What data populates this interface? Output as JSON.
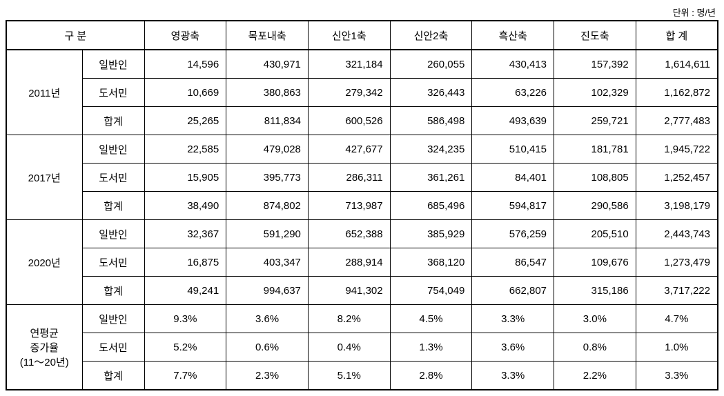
{
  "unit_label": "단위 : 명/년",
  "header": {
    "category": "구 분",
    "columns": [
      "영광축",
      "목포내축",
      "신안1축",
      "신안2축",
      "흑산축",
      "진도축",
      "합 계"
    ]
  },
  "groups": [
    {
      "label": "2011년",
      "rows": [
        {
          "label": "일반인",
          "cells": [
            "14,596",
            "430,971",
            "321,184",
            "260,055",
            "430,413",
            "157,392",
            "1,614,611"
          ]
        },
        {
          "label": "도서민",
          "cells": [
            "10,669",
            "380,863",
            "279,342",
            "326,443",
            "63,226",
            "102,329",
            "1,162,872"
          ]
        },
        {
          "label": "합계",
          "cells": [
            "25,265",
            "811,834",
            "600,526",
            "586,498",
            "493,639",
            "259,721",
            "2,777,483"
          ]
        }
      ]
    },
    {
      "label": "2017년",
      "rows": [
        {
          "label": "일반인",
          "cells": [
            "22,585",
            "479,028",
            "427,677",
            "324,235",
            "510,415",
            "181,781",
            "1,945,722"
          ]
        },
        {
          "label": "도서민",
          "cells": [
            "15,905",
            "395,773",
            "286,311",
            "361,261",
            "84,401",
            "108,805",
            "1,252,457"
          ]
        },
        {
          "label": "합계",
          "cells": [
            "38,490",
            "874,802",
            "713,987",
            "685,496",
            "594,817",
            "290,586",
            "3,198,179"
          ]
        }
      ]
    },
    {
      "label": "2020년",
      "rows": [
        {
          "label": "일반인",
          "cells": [
            "32,367",
            "591,290",
            "652,388",
            "385,929",
            "576,259",
            "205,510",
            "2,443,743"
          ]
        },
        {
          "label": "도서민",
          "cells": [
            "16,875",
            "403,347",
            "288,914",
            "368,120",
            "86,547",
            "109,676",
            "1,273,479"
          ]
        },
        {
          "label": "합계",
          "cells": [
            "49,241",
            "994,637",
            "941,302",
            "754,049",
            "662,807",
            "315,186",
            "3,717,222"
          ]
        }
      ]
    },
    {
      "label": "연평균\n증가율\n(11～20년)",
      "rows": [
        {
          "label": "일반인",
          "cells": [
            "9.3%",
            "3.6%",
            "8.2%",
            "4.5%",
            "3.3%",
            "3.0%",
            "4.7%"
          ]
        },
        {
          "label": "도서민",
          "cells": [
            "5.2%",
            "0.6%",
            "0.4%",
            "1.3%",
            "3.6%",
            "0.8%",
            "1.0%"
          ]
        },
        {
          "label": "합계",
          "cells": [
            "7.7%",
            "2.3%",
            "5.1%",
            "2.8%",
            "3.3%",
            "2.2%",
            "3.3%"
          ]
        }
      ]
    }
  ]
}
